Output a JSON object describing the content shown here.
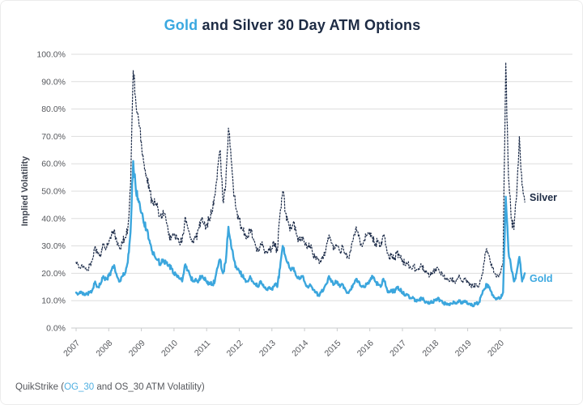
{
  "title": {
    "accent": "Gold",
    "rest": " and Silver 30 Day ATM Options"
  },
  "footer": {
    "prefix": "QuikStrike (",
    "link": "OG_30",
    "suffix": " and OS_30 ATM Volatility)"
  },
  "colors": {
    "accent_blue": "#3AA8E0",
    "navy": "#1D2B44",
    "gold_line": "#3BA6DD",
    "silver_line": "#1E2D4A",
    "gridline": "#DDDDDD",
    "axis_line": "#C9CBCD",
    "tick_text": "#55575C"
  },
  "chart_data": {
    "type": "line",
    "title": "Gold and Silver 30 Day ATM Options",
    "xlabel": "",
    "ylabel": "Implied Volatility",
    "ylim": [
      0,
      100
    ],
    "grid": "horizontal",
    "legend_position": "right-of-line-end",
    "y_ticks": [
      0,
      10,
      20,
      30,
      40,
      50,
      60,
      70,
      80,
      90,
      100
    ],
    "y_tick_labels": [
      "0.0%",
      "10.0%",
      "20.0%",
      "30.0%",
      "40.0%",
      "50.0%",
      "60.0%",
      "70.0%",
      "80.0%",
      "90.0%",
      "100.0%"
    ],
    "x_tick_labels": [
      "2007",
      "2008",
      "2009",
      "2010",
      "2011",
      "2012",
      "2013",
      "2014",
      "2015",
      "2016",
      "2017",
      "2018",
      "2019",
      "2020"
    ],
    "x_start_year": 2007,
    "x_step": "monthly",
    "x_end": 2020.75,
    "noise_texture": {
      "comment": "series are daily data rendered from monthly anchors with small high-frequency jitter",
      "silver_amp_pct_of_value": 5,
      "gold_amp_pct_of_value": 4
    },
    "series": [
      {
        "name": "Silver",
        "style": "dotted",
        "color": "#1E2D4A",
        "label_color": "#1D2B44",
        "values": [
          24,
          22,
          23,
          22,
          21,
          23,
          25,
          30,
          27,
          26,
          31,
          29,
          31,
          34,
          36,
          31,
          29,
          31,
          33,
          36,
          52,
          94,
          82,
          76,
          68,
          60,
          55,
          50,
          47,
          46,
          44,
          41,
          43,
          40,
          34,
          33,
          34,
          33,
          31,
          32,
          40,
          37,
          33,
          31,
          33,
          36,
          40,
          38,
          38,
          40,
          42,
          48,
          58,
          65,
          46,
          52,
          73,
          62,
          48,
          43,
          40,
          36,
          34,
          33,
          36,
          33,
          30,
          28,
          31,
          29,
          28,
          29,
          29,
          31,
          28,
          42,
          50,
          42,
          39,
          36,
          39,
          34,
          32,
          33,
          31,
          29,
          30,
          27,
          26,
          25,
          24,
          26,
          30,
          34,
          31,
          29,
          30,
          28,
          30,
          27,
          26,
          28,
          33,
          37,
          34,
          30,
          32,
          34,
          35,
          33,
          30,
          32,
          30,
          34,
          30,
          26,
          27,
          25,
          28,
          26,
          25,
          23,
          24,
          22,
          23,
          21,
          22,
          23,
          21,
          20,
          19,
          20,
          21,
          22,
          20,
          19,
          18,
          17,
          18,
          17,
          18,
          19,
          17,
          18,
          17,
          16,
          15,
          16,
          15,
          18,
          24,
          29,
          26,
          22,
          20,
          19,
          20,
          24,
          97,
          55,
          40,
          36,
          48,
          70,
          52,
          46
        ]
      },
      {
        "name": "Gold",
        "style": "solid",
        "color": "#3BA6DD",
        "label_color": "#3EA9E0",
        "values": [
          13,
          12.5,
          13,
          12,
          12.5,
          13,
          14,
          17,
          15,
          16,
          19,
          18,
          19,
          21,
          23,
          19,
          17,
          19,
          20,
          24,
          35,
          61,
          50,
          46,
          42,
          38,
          36,
          32,
          28,
          26,
          25,
          23,
          25,
          24,
          23,
          22,
          20,
          19,
          18,
          17,
          23,
          21,
          19,
          17,
          18,
          17,
          19,
          18,
          17,
          16,
          16,
          17,
          22,
          25,
          20,
          24,
          37,
          30,
          25,
          22,
          21,
          19,
          18,
          17,
          19,
          17,
          16,
          15,
          17,
          15,
          14,
          15,
          14,
          16,
          15,
          22,
          30,
          26,
          24,
          21,
          22,
          19,
          18,
          19,
          17,
          15,
          16,
          14,
          13,
          12,
          13,
          14,
          16,
          19,
          17,
          16,
          17,
          15,
          16,
          14,
          13,
          14,
          16,
          18,
          17,
          15,
          15,
          16,
          17,
          19,
          17,
          16,
          15,
          18,
          15,
          13,
          14,
          13,
          15,
          14,
          13,
          12,
          12,
          11,
          11,
          10,
          10,
          11,
          10,
          9.5,
          9,
          9.5,
          10,
          11,
          10,
          9,
          9,
          8.5,
          9,
          9.5,
          9,
          10,
          9,
          10,
          9,
          8.5,
          8,
          9,
          9,
          12,
          14,
          16,
          15,
          12,
          11,
          11,
          11,
          13,
          48,
          28,
          22,
          17,
          20,
          26,
          17,
          20
        ]
      }
    ]
  }
}
